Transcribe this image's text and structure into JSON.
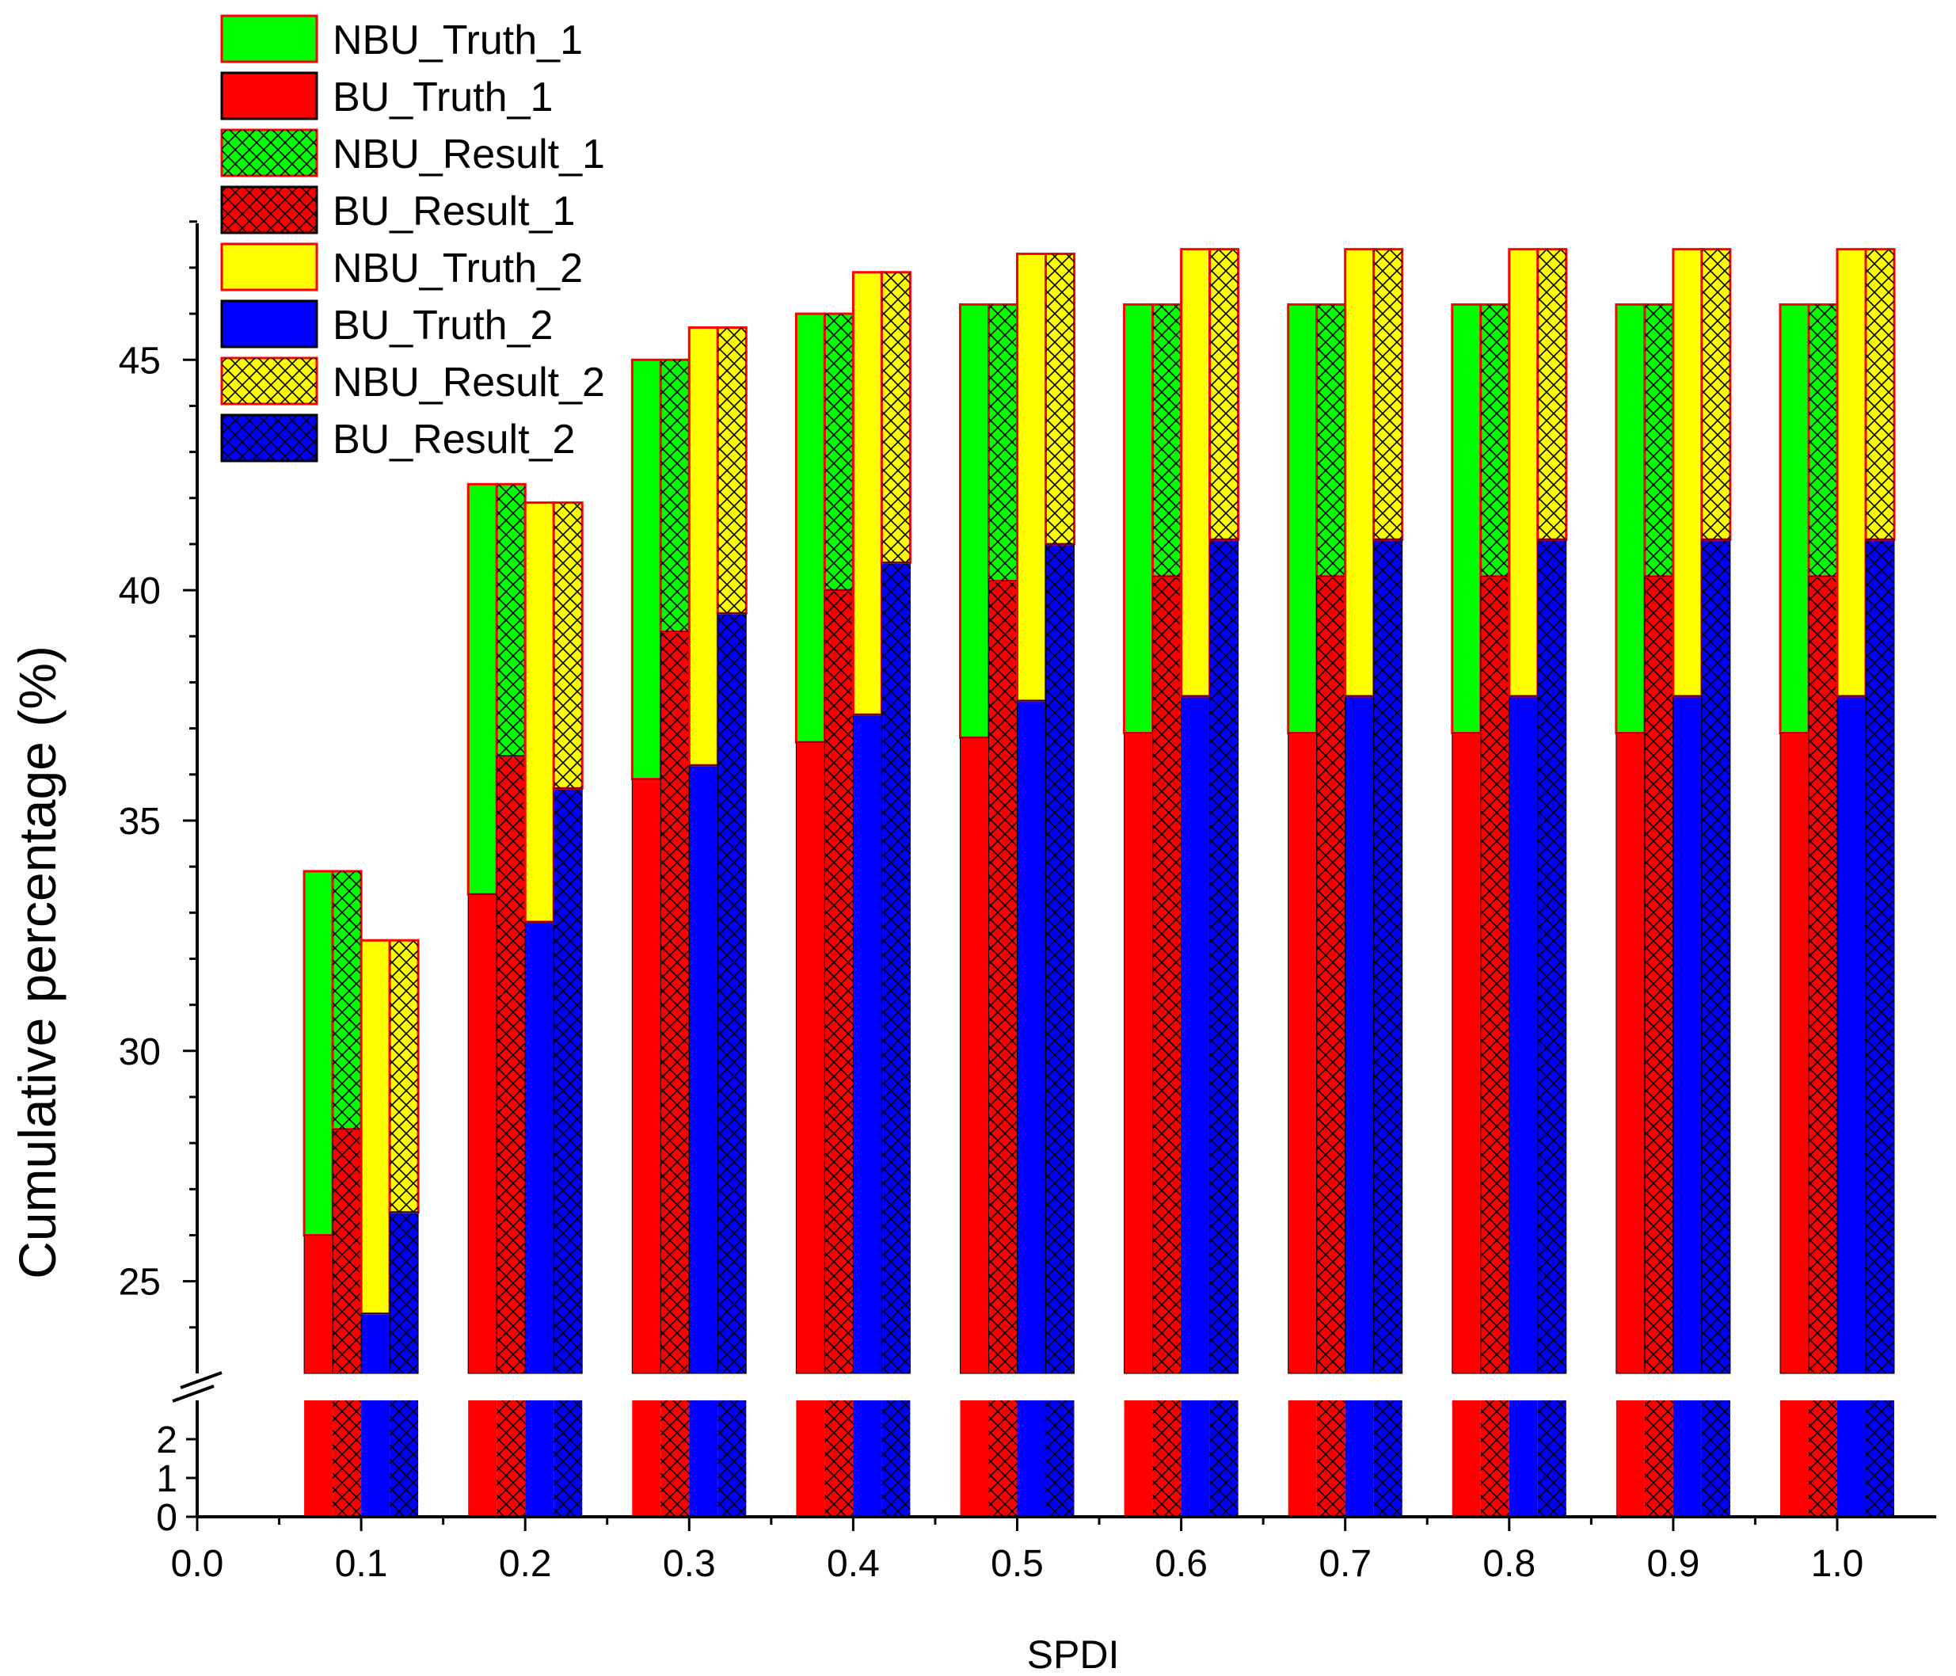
{
  "chart_data": {
    "type": "bar",
    "stacked": true,
    "broken_y_axis": true,
    "title": "",
    "xlabel": "SPDI",
    "ylabel": "Cumulative percentage (%)",
    "x": [
      0.1,
      0.2,
      0.3,
      0.4,
      0.5,
      0.6,
      0.7,
      0.8,
      0.9,
      1.0
    ],
    "xlim": [
      0.0,
      1.05
    ],
    "x_tick_labels": [
      "0.0",
      "0.1",
      "0.2",
      "0.3",
      "0.4",
      "0.5",
      "0.6",
      "0.7",
      "0.8",
      "0.9",
      "1.0"
    ],
    "y_lower_range": [
      0,
      3
    ],
    "y_lower_ticks": [
      0,
      1,
      2
    ],
    "y_upper_range": [
      23.0,
      48.8
    ],
    "y_upper_ticks": [
      25,
      30,
      35,
      40,
      45
    ],
    "legend_position": "top-left",
    "series": [
      {
        "name": "NBU_Truth_1",
        "color": "#00ff00",
        "hatch": false,
        "bar": 0,
        "stack": "top",
        "values": [
          33.9,
          42.3,
          45.0,
          46.0,
          46.2,
          46.2,
          46.2,
          46.2,
          46.2,
          46.2
        ]
      },
      {
        "name": "BU_Truth_1",
        "color": "#ff0000",
        "hatch": false,
        "bar": 0,
        "stack": "bottom",
        "values": [
          26.0,
          33.4,
          35.9,
          36.7,
          36.8,
          36.9,
          36.9,
          36.9,
          36.9,
          36.9
        ]
      },
      {
        "name": "NBU_Result_1",
        "color": "#00ff00",
        "hatch": true,
        "bar": 1,
        "stack": "top",
        "values": [
          33.9,
          42.3,
          45.0,
          46.0,
          46.2,
          46.2,
          46.2,
          46.2,
          46.2,
          46.2
        ]
      },
      {
        "name": "BU_Result_1",
        "color": "#ff0000",
        "hatch": true,
        "bar": 1,
        "stack": "bottom",
        "values": [
          28.3,
          36.4,
          39.1,
          40.0,
          40.2,
          40.3,
          40.3,
          40.3,
          40.3,
          40.3
        ]
      },
      {
        "name": "NBU_Truth_2",
        "color": "#ffff00",
        "hatch": false,
        "bar": 2,
        "stack": "top",
        "values": [
          32.4,
          41.9,
          45.7,
          46.9,
          47.3,
          47.4,
          47.4,
          47.4,
          47.4,
          47.4
        ]
      },
      {
        "name": "BU_Truth_2",
        "color": "#0000ff",
        "hatch": false,
        "bar": 2,
        "stack": "bottom",
        "values": [
          24.3,
          32.8,
          36.2,
          37.3,
          37.6,
          37.7,
          37.7,
          37.7,
          37.7,
          37.7
        ]
      },
      {
        "name": "NBU_Result_2",
        "color": "#ffff00",
        "hatch": true,
        "bar": 3,
        "stack": "top",
        "values": [
          32.4,
          41.9,
          45.7,
          46.9,
          47.3,
          47.4,
          47.4,
          47.4,
          47.4,
          47.4
        ]
      },
      {
        "name": "BU_Result_2",
        "color": "#0000ff",
        "hatch": true,
        "bar": 3,
        "stack": "bottom",
        "values": [
          26.5,
          35.7,
          39.5,
          40.6,
          41.0,
          41.1,
          41.1,
          41.1,
          41.1,
          41.1
        ]
      }
    ]
  }
}
